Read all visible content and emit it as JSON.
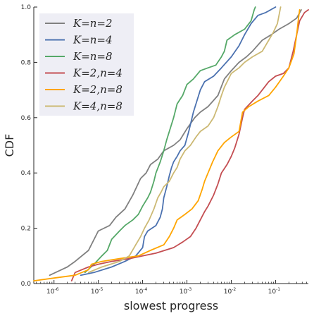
{
  "chart_data": {
    "type": "line",
    "xlabel": "slowest progress",
    "ylabel": "CDF",
    "xscale": "log",
    "xlim": [
      3.5e-07,
      0.55
    ],
    "ylim": [
      0,
      1.0
    ],
    "y_ticks": [
      "0.0",
      "0.2",
      "0.4",
      "0.6",
      "0.8",
      "1.0"
    ],
    "x_ticks": [
      {
        "value": 1e-06,
        "base": "10",
        "exp": "-6"
      },
      {
        "value": 1e-05,
        "base": "10",
        "exp": "-5"
      },
      {
        "value": 0.0001,
        "base": "10",
        "exp": "-4"
      },
      {
        "value": 0.001,
        "base": "10",
        "exp": "-3"
      },
      {
        "value": 0.01,
        "base": "10",
        "exp": "-2"
      },
      {
        "value": 0.1,
        "base": "10",
        "exp": "-1"
      }
    ],
    "legend_position": "top-left",
    "grid": false,
    "series": [
      {
        "name": "K=n=2",
        "color": "#808080",
        "points": [
          [
            8e-07,
            0.03
          ],
          [
            2e-06,
            0.06
          ],
          [
            3e-06,
            0.08
          ],
          [
            6e-06,
            0.12
          ],
          [
            1e-05,
            0.19
          ],
          [
            1.8e-05,
            0.21
          ],
          [
            2.5e-05,
            0.24
          ],
          [
            4e-05,
            0.27
          ],
          [
            6e-05,
            0.32
          ],
          [
            9e-05,
            0.38
          ],
          [
            0.00012,
            0.4
          ],
          [
            0.00015,
            0.43
          ],
          [
            0.00022,
            0.45
          ],
          [
            0.0003,
            0.48
          ],
          [
            0.0005,
            0.5
          ],
          [
            0.0007,
            0.52
          ],
          [
            0.001,
            0.56
          ],
          [
            0.0015,
            0.6
          ],
          [
            0.002,
            0.62
          ],
          [
            0.003,
            0.64
          ],
          [
            0.005,
            0.68
          ],
          [
            0.007,
            0.74
          ],
          [
            0.01,
            0.77
          ],
          [
            0.015,
            0.8
          ],
          [
            0.022,
            0.82
          ],
          [
            0.03,
            0.84
          ],
          [
            0.05,
            0.88
          ],
          [
            0.08,
            0.9
          ],
          [
            0.12,
            0.92
          ],
          [
            0.2,
            0.94
          ],
          [
            0.3,
            0.96
          ],
          [
            0.38,
            0.99
          ]
        ]
      },
      {
        "name": "K=n=4",
        "color": "#4c72b0",
        "points": [
          [
            4e-06,
            0.03
          ],
          [
            8e-06,
            0.04
          ],
          [
            2e-05,
            0.06
          ],
          [
            4e-05,
            0.08
          ],
          [
            7e-05,
            0.1
          ],
          [
            0.0001,
            0.13
          ],
          [
            0.00011,
            0.17
          ],
          [
            0.00013,
            0.19
          ],
          [
            0.0002,
            0.21
          ],
          [
            0.00025,
            0.24
          ],
          [
            0.00028,
            0.27
          ],
          [
            0.0003,
            0.31
          ],
          [
            0.00035,
            0.35
          ],
          [
            0.0004,
            0.39
          ],
          [
            0.00045,
            0.42
          ],
          [
            0.0005,
            0.44
          ],
          [
            0.0006,
            0.46
          ],
          [
            0.0007,
            0.48
          ],
          [
            0.0009,
            0.5
          ],
          [
            0.0011,
            0.55
          ],
          [
            0.0014,
            0.62
          ],
          [
            0.002,
            0.7
          ],
          [
            0.0025,
            0.73
          ],
          [
            0.004,
            0.75
          ],
          [
            0.006,
            0.78
          ],
          [
            0.01,
            0.82
          ],
          [
            0.015,
            0.86
          ],
          [
            0.02,
            0.9
          ],
          [
            0.028,
            0.94
          ],
          [
            0.04,
            0.97
          ],
          [
            0.06,
            0.98
          ],
          [
            0.1,
            1.0
          ]
        ]
      },
      {
        "name": "K=n=8",
        "color": "#55a868",
        "points": [
          [
            5e-06,
            0.04
          ],
          [
            8e-06,
            0.07
          ],
          [
            1.2e-05,
            0.1
          ],
          [
            1.6e-05,
            0.12
          ],
          [
            2e-05,
            0.16
          ],
          [
            3e-05,
            0.19
          ],
          [
            4e-05,
            0.21
          ],
          [
            6e-05,
            0.23
          ],
          [
            8e-05,
            0.25
          ],
          [
            0.0001,
            0.28
          ],
          [
            0.00013,
            0.31
          ],
          [
            0.00015,
            0.33
          ],
          [
            0.00018,
            0.37
          ],
          [
            0.0002,
            0.4
          ],
          [
            0.00025,
            0.44
          ],
          [
            0.0003,
            0.48
          ],
          [
            0.00035,
            0.52
          ],
          [
            0.0004,
            0.55
          ],
          [
            0.0005,
            0.6
          ],
          [
            0.0006,
            0.65
          ],
          [
            0.0008,
            0.68
          ],
          [
            0.001,
            0.72
          ],
          [
            0.0014,
            0.74
          ],
          [
            0.002,
            0.77
          ],
          [
            0.003,
            0.78
          ],
          [
            0.0045,
            0.79
          ],
          [
            0.006,
            0.82
          ],
          [
            0.007,
            0.84
          ],
          [
            0.008,
            0.88
          ],
          [
            0.012,
            0.9
          ],
          [
            0.02,
            0.92
          ],
          [
            0.028,
            0.95
          ],
          [
            0.033,
            0.99
          ],
          [
            0.035,
            1.0
          ]
        ]
      },
      {
        "name": "K=2,n=4",
        "color": "#c44e52",
        "points": [
          [
            2.5e-06,
            0.01
          ],
          [
            3e-06,
            0.04
          ],
          [
            6e-06,
            0.06
          ],
          [
            1e-05,
            0.07
          ],
          [
            2e-05,
            0.08
          ],
          [
            5e-05,
            0.09
          ],
          [
            0.0001,
            0.1
          ],
          [
            0.0002,
            0.11
          ],
          [
            0.0005,
            0.13
          ],
          [
            0.0008,
            0.15
          ],
          [
            0.0012,
            0.17
          ],
          [
            0.0016,
            0.2
          ],
          [
            0.002,
            0.23
          ],
          [
            0.0025,
            0.26
          ],
          [
            0.003,
            0.28
          ],
          [
            0.004,
            0.32
          ],
          [
            0.005,
            0.36
          ],
          [
            0.006,
            0.4
          ],
          [
            0.008,
            0.43
          ],
          [
            0.01,
            0.46
          ],
          [
            0.012,
            0.49
          ],
          [
            0.015,
            0.54
          ],
          [
            0.018,
            0.6
          ],
          [
            0.02,
            0.63
          ],
          [
            0.03,
            0.66
          ],
          [
            0.04,
            0.68
          ],
          [
            0.05,
            0.7
          ],
          [
            0.07,
            0.73
          ],
          [
            0.1,
            0.75
          ],
          [
            0.15,
            0.76
          ],
          [
            0.2,
            0.78
          ],
          [
            0.25,
            0.84
          ],
          [
            0.3,
            0.9
          ],
          [
            0.35,
            0.95
          ],
          [
            0.45,
            0.98
          ],
          [
            0.55,
            0.99
          ]
        ]
      },
      {
        "name": "K=2,n=8",
        "color": "#ffa500",
        "points": [
          [
            3.5e-07,
            0.01
          ],
          [
            1e-06,
            0.02
          ],
          [
            3e-06,
            0.03
          ],
          [
            6e-06,
            0.05
          ],
          [
            7e-06,
            0.07
          ],
          [
            1.2e-05,
            0.08
          ],
          [
            3e-05,
            0.09
          ],
          [
            8e-05,
            0.1
          ],
          [
            0.00015,
            0.12
          ],
          [
            0.0003,
            0.14
          ],
          [
            0.0004,
            0.17
          ],
          [
            0.0005,
            0.2
          ],
          [
            0.0006,
            0.23
          ],
          [
            0.0009,
            0.25
          ],
          [
            0.0013,
            0.27
          ],
          [
            0.0018,
            0.3
          ],
          [
            0.0022,
            0.34
          ],
          [
            0.0025,
            0.37
          ],
          [
            0.003,
            0.4
          ],
          [
            0.0038,
            0.44
          ],
          [
            0.005,
            0.48
          ],
          [
            0.007,
            0.51
          ],
          [
            0.01,
            0.53
          ],
          [
            0.015,
            0.55
          ],
          [
            0.018,
            0.62
          ],
          [
            0.025,
            0.64
          ],
          [
            0.04,
            0.66
          ],
          [
            0.07,
            0.68
          ],
          [
            0.1,
            0.71
          ],
          [
            0.15,
            0.75
          ],
          [
            0.2,
            0.78
          ],
          [
            0.26,
            0.83
          ],
          [
            0.3,
            0.9
          ],
          [
            0.33,
            0.96
          ],
          [
            0.35,
            0.99
          ]
        ]
      },
      {
        "name": "K=4,n=8",
        "color": "#ccb974",
        "points": [
          [
            6e-06,
            0.04
          ],
          [
            1.2e-05,
            0.06
          ],
          [
            3e-05,
            0.08
          ],
          [
            5e-05,
            0.1
          ],
          [
            7e-05,
            0.14
          ],
          [
            9e-05,
            0.17
          ],
          [
            0.00011,
            0.2
          ],
          [
            0.00014,
            0.23
          ],
          [
            0.00018,
            0.27
          ],
          [
            0.00022,
            0.31
          ],
          [
            0.00026,
            0.33
          ],
          [
            0.0003,
            0.35
          ],
          [
            0.0004,
            0.37
          ],
          [
            0.0005,
            0.4
          ],
          [
            0.0006,
            0.42
          ],
          [
            0.0007,
            0.45
          ],
          [
            0.0009,
            0.48
          ],
          [
            0.0012,
            0.5
          ],
          [
            0.0016,
            0.53
          ],
          [
            0.002,
            0.55
          ],
          [
            0.003,
            0.57
          ],
          [
            0.004,
            0.6
          ],
          [
            0.005,
            0.64
          ],
          [
            0.006,
            0.68
          ],
          [
            0.007,
            0.71
          ],
          [
            0.01,
            0.76
          ],
          [
            0.015,
            0.78
          ],
          [
            0.02,
            0.8
          ],
          [
            0.03,
            0.82
          ],
          [
            0.05,
            0.84
          ],
          [
            0.07,
            0.88
          ],
          [
            0.09,
            0.91
          ],
          [
            0.11,
            0.94
          ],
          [
            0.13,
            1.0
          ]
        ]
      }
    ]
  }
}
